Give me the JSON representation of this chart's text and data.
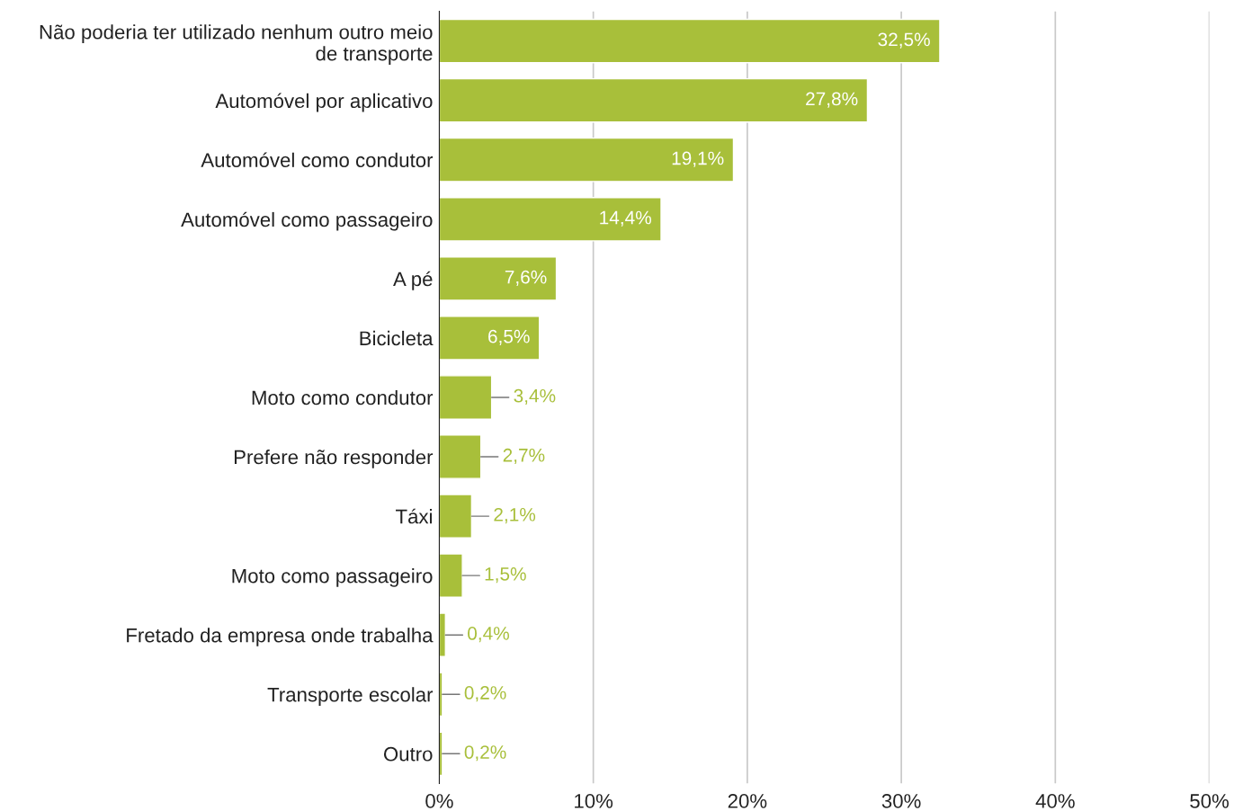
{
  "chart_data": {
    "type": "bar",
    "orientation": "horizontal",
    "categories": [
      "Não poderia ter utilizado nenhum outro meio\nde transporte",
      "Automóvel por aplicativo",
      "Automóvel como condutor",
      "Automóvel como passageiro",
      "A pé",
      "Bicicleta",
      "Moto como condutor",
      "Prefere não responder",
      "Táxi",
      "Moto como passageiro",
      "Fretado da empresa onde trabalha",
      "Transporte escolar",
      "Outro"
    ],
    "values": [
      32.5,
      27.8,
      19.1,
      14.4,
      7.6,
      6.5,
      3.4,
      2.7,
      2.1,
      1.5,
      0.4,
      0.2,
      0.2
    ],
    "value_labels": [
      "32,5%",
      "27,8%",
      "19,1%",
      "14,4%",
      "7,6%",
      "6,5%",
      "3,4%",
      "2,7%",
      "2,1%",
      "1,5%",
      "0,4%",
      "0,2%",
      "0,2%"
    ],
    "color": "#a8bf3a",
    "xlim": [
      0,
      50
    ],
    "xticks": [
      {
        "value": 0,
        "label": "0%"
      },
      {
        "value": 10,
        "label": "10%"
      },
      {
        "value": 20,
        "label": "20%"
      },
      {
        "value": 30,
        "label": "30%"
      },
      {
        "value": 40,
        "label": "40%"
      },
      {
        "value": 50,
        "label": "50%"
      }
    ],
    "grid": "x"
  }
}
